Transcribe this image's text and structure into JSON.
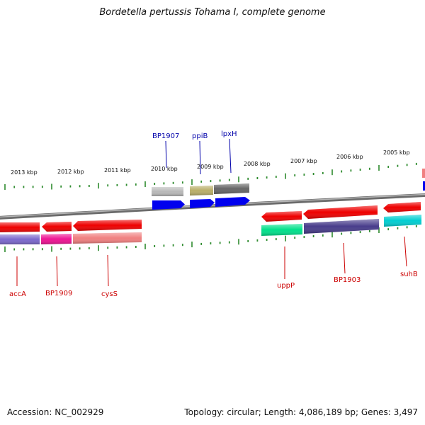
{
  "title": "Bordetella pertussis Tohama I, complete genome",
  "footer": {
    "accession": "Accession: NC_002929",
    "topology": "Topology: circular; Length: 4,086,189 bp; Genes: 3,497"
  },
  "colors": {
    "backbone": "#808080",
    "tick": "#2e8b2e",
    "label_forward": "#0000aa",
    "label_reverse": "#cc0000"
  },
  "scale_labels": [
    "2013 kbp",
    "2012 kbp",
    "2011 kbp",
    "2010 kbp",
    "2009 kbp",
    "2008 kbp",
    "2007 kbp",
    "2006 kbp",
    "2005 kbp"
  ],
  "genes": [
    {
      "id": "accA",
      "label": "accA",
      "strand": "reverse",
      "label_color": "#cc0000"
    },
    {
      "id": "BP1909",
      "label": "BP1909",
      "strand": "reverse",
      "label_color": "#cc0000"
    },
    {
      "id": "cysS",
      "label": "cysS",
      "strand": "reverse",
      "label_color": "#cc0000"
    },
    {
      "id": "BP1907",
      "label": "BP1907",
      "strand": "forward",
      "label_color": "#0000aa"
    },
    {
      "id": "ppiB",
      "label": "ppiB",
      "strand": "forward",
      "label_color": "#0000aa"
    },
    {
      "id": "lpxH",
      "label": "lpxH",
      "strand": "forward",
      "label_color": "#0000aa"
    },
    {
      "id": "uppP",
      "label": "uppP",
      "strand": "reverse",
      "label_color": "#cc0000"
    },
    {
      "id": "BP1903",
      "label": "BP1903",
      "strand": "reverse",
      "label_color": "#cc0000"
    },
    {
      "id": "suhB",
      "label": "suhB",
      "strand": "reverse",
      "label_color": "#cc0000"
    }
  ]
}
